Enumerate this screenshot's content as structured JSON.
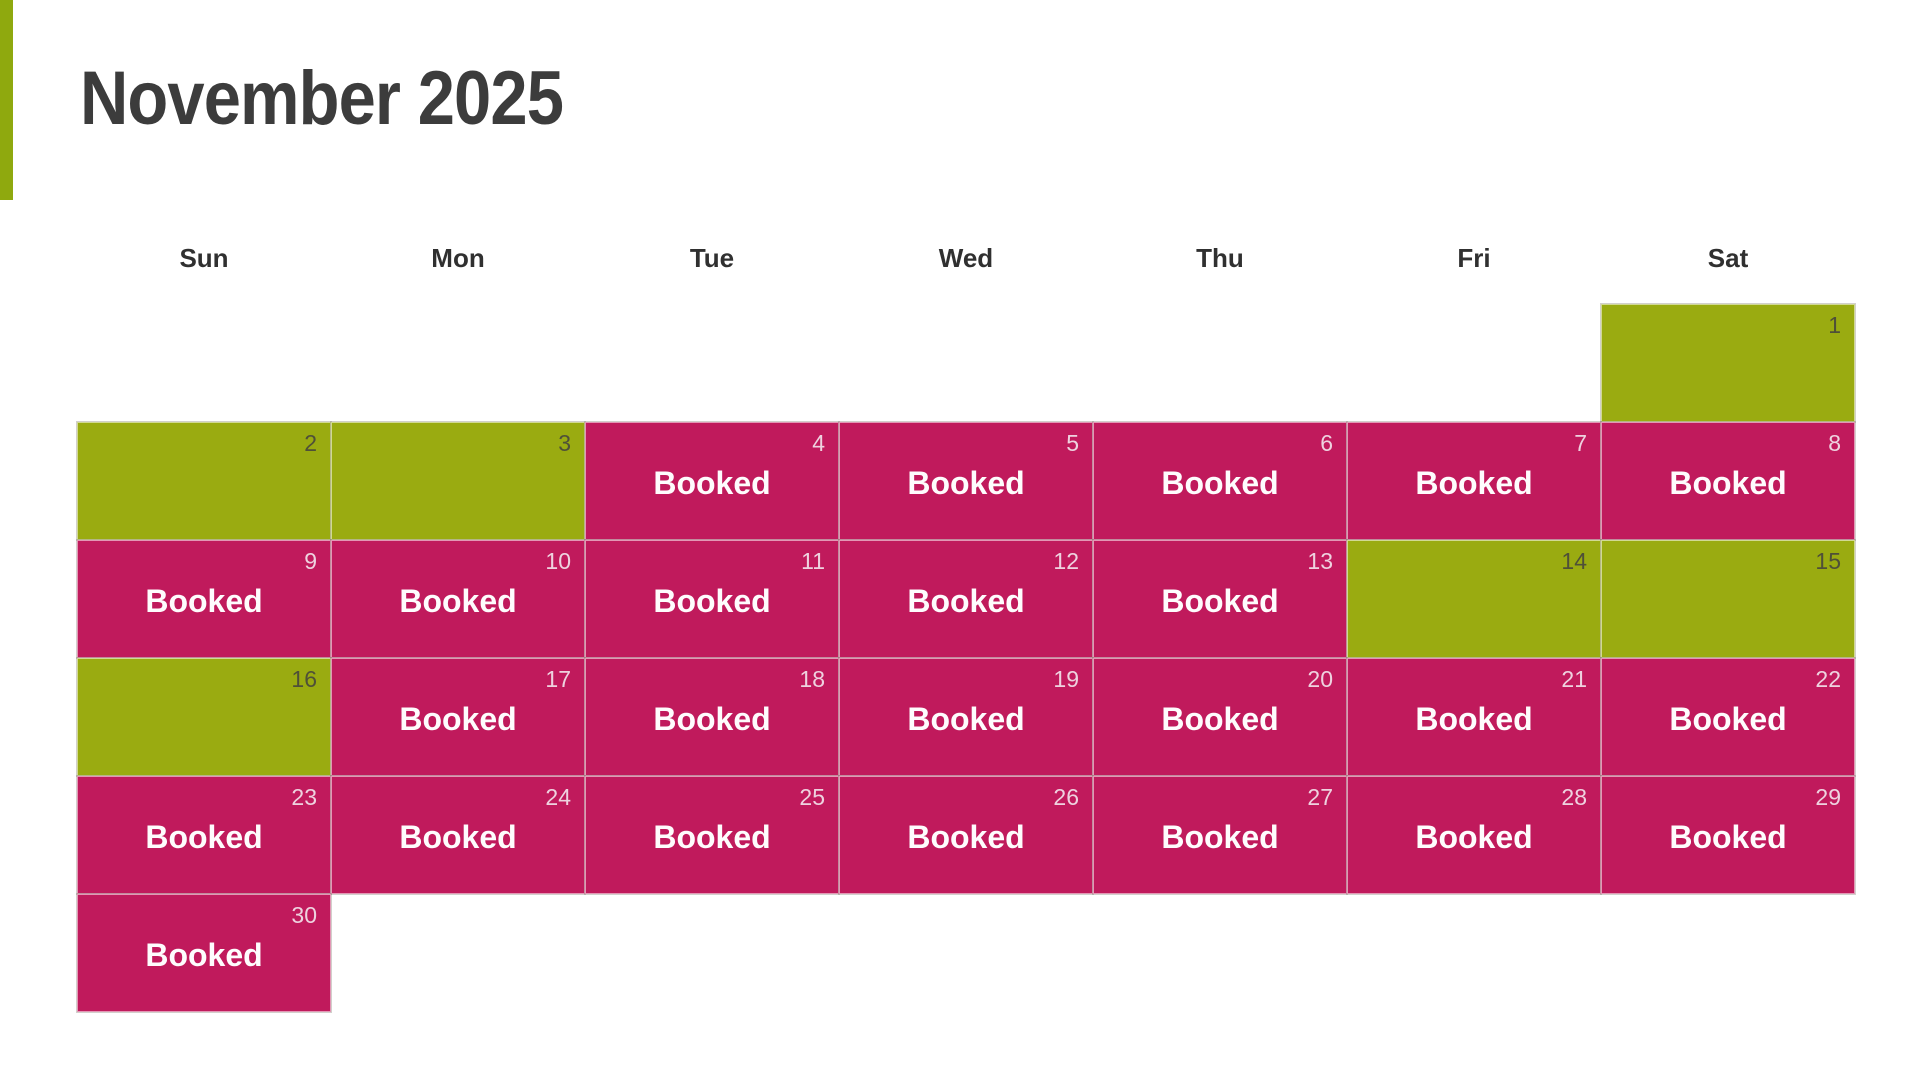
{
  "page": {
    "background": "#ffffff",
    "accent_bar_color": "#8fa90e"
  },
  "header": {
    "title": "November 2025"
  },
  "calendar": {
    "weekday_headers": [
      "Sun",
      "Mon",
      "Tue",
      "Wed",
      "Thu",
      "Fri",
      "Sat"
    ],
    "booked_label": "Booked",
    "colors": {
      "available": "#9aab11",
      "booked": "#c01a5c",
      "booked_text": "#fefcfd",
      "day_number_on_available": "#4f5038",
      "day_number_on_booked": "#eed2df",
      "cell_border": "rgba(255,255,255,0.55)"
    },
    "weeks": [
      [
        null,
        null,
        null,
        null,
        null,
        null,
        {
          "day": 1,
          "status": "available"
        }
      ],
      [
        {
          "day": 2,
          "status": "available"
        },
        {
          "day": 3,
          "status": "available"
        },
        {
          "day": 4,
          "status": "booked"
        },
        {
          "day": 5,
          "status": "booked"
        },
        {
          "day": 6,
          "status": "booked"
        },
        {
          "day": 7,
          "status": "booked"
        },
        {
          "day": 8,
          "status": "booked"
        }
      ],
      [
        {
          "day": 9,
          "status": "booked"
        },
        {
          "day": 10,
          "status": "booked"
        },
        {
          "day": 11,
          "status": "booked"
        },
        {
          "day": 12,
          "status": "booked"
        },
        {
          "day": 13,
          "status": "booked"
        },
        {
          "day": 14,
          "status": "available"
        },
        {
          "day": 15,
          "status": "available"
        }
      ],
      [
        {
          "day": 16,
          "status": "available"
        },
        {
          "day": 17,
          "status": "booked"
        },
        {
          "day": 18,
          "status": "booked"
        },
        {
          "day": 19,
          "status": "booked"
        },
        {
          "day": 20,
          "status": "booked"
        },
        {
          "day": 21,
          "status": "booked"
        },
        {
          "day": 22,
          "status": "booked"
        }
      ],
      [
        {
          "day": 23,
          "status": "booked"
        },
        {
          "day": 24,
          "status": "booked"
        },
        {
          "day": 25,
          "status": "booked"
        },
        {
          "day": 26,
          "status": "booked"
        },
        {
          "day": 27,
          "status": "booked"
        },
        {
          "day": 28,
          "status": "booked"
        },
        {
          "day": 29,
          "status": "booked"
        }
      ],
      [
        {
          "day": 30,
          "status": "booked"
        },
        null,
        null,
        null,
        null,
        null,
        null
      ]
    ]
  }
}
